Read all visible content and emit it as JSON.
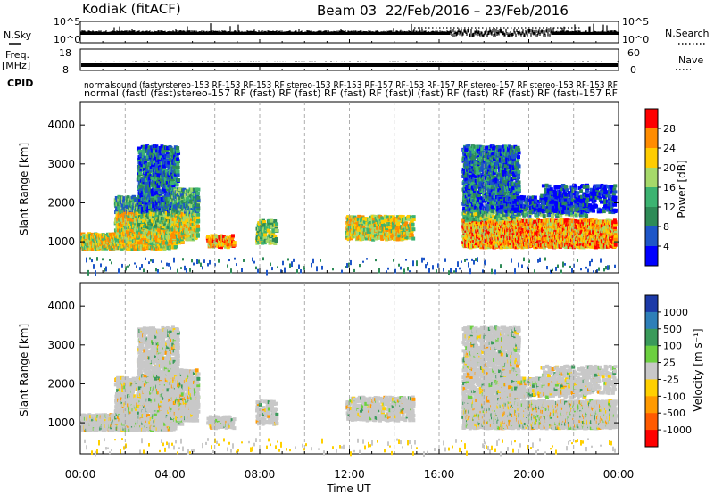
{
  "header": {
    "station": "Kodiak (fitACF)",
    "beam": "Beam 03",
    "date_range": "22/Feb/2016 – 23/Feb/2016"
  },
  "left_labels": {
    "nsky": "N.Sky",
    "freq": "Freq.",
    "freq_unit": "[MHz]",
    "cpid": "CPID"
  },
  "right_labels": {
    "nsearch": "N.Search",
    "nave": "Nave"
  },
  "noise_panel": {
    "left_ticks": [
      "10^5",
      "10^0"
    ],
    "right_ticks": [
      "10^5",
      "10^0"
    ]
  },
  "freq_panel": {
    "left_ticks": [
      "18",
      "8"
    ],
    "right_ticks": [
      "60",
      "0"
    ]
  },
  "cpid_text": {
    "row1": "normalsound (fastyrstereo-153 RF-153 RF-153 RF stereo-153 RF-153 RF-157 RF-153 RF-157 RF stereo-157 RF stereo-153 RF-153 RF",
    "row2": "normal (fastl (fast)stereo-157 RF (fast) RF (fast) RF (fast) RF (fast)l (fast) RF (fast) RF (fast) RF (fast)-157 RF"
  },
  "chart_data": [
    {
      "type": "heatmap",
      "name": "Power",
      "ylabel": "Slant Range [km]",
      "ylim": [
        200,
        4600
      ],
      "yticks": [
        "1000",
        "2000",
        "3000",
        "4000"
      ],
      "colorbar_label": "Power [dB]",
      "colorbar_ticks": [
        "28",
        "24",
        "20",
        "16",
        "12",
        "8",
        "4"
      ],
      "colorbar_colors": [
        "#ff0000",
        "#ff8c00",
        "#ffcc00",
        "#a6d96a",
        "#3cb371",
        "#2e8b57",
        "#1e56c8",
        "#0000ff"
      ],
      "xticks": [
        "00:00",
        "04:00",
        "08:00",
        "12:00",
        "16:00",
        "20:00",
        "00:00"
      ],
      "grid": true
    },
    {
      "type": "heatmap",
      "name": "Velocity",
      "ylabel": "Slant Range [km]",
      "ylim": [
        200,
        4600
      ],
      "yticks": [
        "1000",
        "2000",
        "3000",
        "4000"
      ],
      "colorbar_label": "Velocity [m s⁻¹]",
      "colorbar_ticks": [
        "1000",
        "500",
        "100",
        "25",
        "-25",
        "-100",
        "-500",
        "-1000"
      ],
      "colorbar_colors": [
        "#1c3aa8",
        "#2e7fb8",
        "#3a9a5a",
        "#6cd040",
        "#c8c8c8",
        "#ffd000",
        "#ff9a00",
        "#ff5a00",
        "#ff0000"
      ],
      "xlabel": "Time UT",
      "xticks": [
        "00:00",
        "04:00",
        "08:00",
        "12:00",
        "16:00",
        "20:00",
        "00:00"
      ],
      "grid": true
    }
  ]
}
